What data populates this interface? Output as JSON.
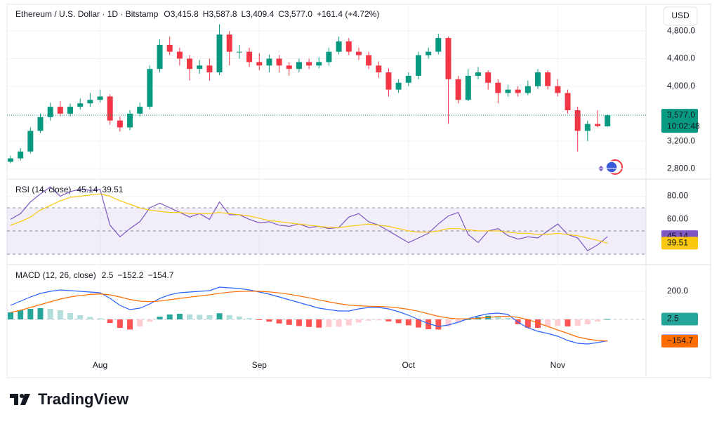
{
  "brand": "TradingView",
  "chart_data": [
    {
      "type": "candlestick",
      "title": "Ethereum / U.S. Dollar · 1D · Bitstamp",
      "legend": [
        {
          "key": "O",
          "value": "3,415.8"
        },
        {
          "key": "H",
          "value": "3,587.8"
        },
        {
          "key": "L",
          "value": "3,409.4"
        },
        {
          "key": "C",
          "value": "3,577.0"
        }
      ],
      "change": "+161.4 (+4.72%)",
      "currency": "USD",
      "up_color": "#089981",
      "down_color": "#f23645",
      "categories": [
        null,
        null,
        null,
        null,
        null,
        null,
        null,
        null,
        null,
        "Aug",
        null,
        null,
        null,
        null,
        null,
        null,
        null,
        null,
        null,
        null,
        null,
        null,
        null,
        null,
        null,
        "Sep",
        null,
        null,
        null,
        null,
        null,
        null,
        null,
        null,
        null,
        null,
        null,
        null,
        null,
        null,
        "Oct",
        null,
        null,
        null,
        null,
        null,
        null,
        null,
        null,
        null,
        null,
        null,
        null,
        null,
        null,
        "Nov",
        null,
        null,
        null,
        null,
        null
      ],
      "candles": [
        [
          2900,
          2990,
          2880,
          2950
        ],
        [
          2950,
          3100,
          2920,
          3050
        ],
        [
          3050,
          3400,
          3020,
          3350
        ],
        [
          3350,
          3600,
          3320,
          3550
        ],
        [
          3550,
          3760,
          3500,
          3700
        ],
        [
          3700,
          3780,
          3560,
          3600
        ],
        [
          3600,
          3750,
          3560,
          3700
        ],
        [
          3700,
          3820,
          3660,
          3750
        ],
        [
          3750,
          3900,
          3700,
          3800
        ],
        [
          3800,
          3950,
          3760,
          3850
        ],
        [
          3850,
          3880,
          3440,
          3500
        ],
        [
          3500,
          3560,
          3340,
          3400
        ],
        [
          3400,
          3650,
          3360,
          3600
        ],
        [
          3600,
          3760,
          3560,
          3700
        ],
        [
          3700,
          4300,
          3660,
          4250
        ],
        [
          4250,
          4680,
          4200,
          4600
        ],
        [
          4600,
          4720,
          4450,
          4500
        ],
        [
          4500,
          4560,
          4300,
          4400
        ],
        [
          4400,
          4450,
          4080,
          4250
        ],
        [
          4250,
          4380,
          4180,
          4300
        ],
        [
          4300,
          4400,
          4080,
          4200
        ],
        [
          4200,
          4900,
          4160,
          4750
        ],
        [
          4750,
          4800,
          4300,
          4500
        ],
        [
          4500,
          4600,
          4400,
          4500
        ],
        [
          4500,
          4560,
          4280,
          4350
        ],
        [
          4350,
          4480,
          4230,
          4300
        ],
        [
          4300,
          4460,
          4200,
          4400
        ],
        [
          4400,
          4450,
          4200,
          4300
        ],
        [
          4300,
          4350,
          4150,
          4250
        ],
        [
          4250,
          4400,
          4200,
          4350
        ],
        [
          4350,
          4400,
          4250,
          4300
        ],
        [
          4300,
          4420,
          4260,
          4350
        ],
        [
          4350,
          4560,
          4300,
          4500
        ],
        [
          4500,
          4720,
          4460,
          4650
        ],
        [
          4650,
          4700,
          4450,
          4500
        ],
        [
          4500,
          4560,
          4380,
          4450
        ],
        [
          4450,
          4500,
          4250,
          4300
        ],
        [
          4300,
          4360,
          4120,
          4200
        ],
        [
          4200,
          4260,
          3850,
          3950
        ],
        [
          3950,
          4100,
          3900,
          4050
        ],
        [
          4050,
          4200,
          4000,
          4150
        ],
        [
          4150,
          4500,
          4100,
          4450
        ],
        [
          4450,
          4560,
          4400,
          4500
        ],
        [
          4500,
          4760,
          4460,
          4700
        ],
        [
          4700,
          4720,
          3450,
          4100
        ],
        [
          4100,
          4150,
          3750,
          3800
        ],
        [
          3800,
          4250,
          3780,
          4150
        ],
        [
          4150,
          4280,
          4100,
          4200
        ],
        [
          4200,
          4230,
          3950,
          4050
        ],
        [
          4050,
          4100,
          3750,
          3900
        ],
        [
          3900,
          4020,
          3850,
          3950
        ],
        [
          3950,
          4000,
          3850,
          3900
        ],
        [
          3900,
          4080,
          3870,
          4000
        ],
        [
          4000,
          4250,
          3960,
          4200
        ],
        [
          4200,
          4230,
          3950,
          4000
        ],
        [
          4000,
          4100,
          3850,
          3900
        ],
        [
          3900,
          3950,
          3600,
          3650
        ],
        [
          3650,
          3700,
          3050,
          3350
        ],
        [
          3350,
          3500,
          3200,
          3450
        ],
        [
          3450,
          3650,
          3400,
          3420
        ],
        [
          3415.8,
          3587.8,
          3409.4,
          3577.0
        ]
      ],
      "last_label": "3,577.0",
      "countdown": "10:02:48",
      "ylim": [
        2650,
        5150
      ],
      "yticks": [
        {
          "value": 2800,
          "label": "2,800.0"
        },
        {
          "value": 3200,
          "label": "3,200.0"
        },
        {
          "value": 4000,
          "label": "4,000.0"
        },
        {
          "value": 4400,
          "label": "4,400.0"
        },
        {
          "value": 4800,
          "label": "4,800.0"
        }
      ]
    },
    {
      "type": "line",
      "title": "RSI (14, close)",
      "series": [
        {
          "color": "#7e57c2",
          "values": [
            60,
            65,
            75,
            82,
            88,
            80,
            84,
            86,
            85,
            86,
            55,
            45,
            52,
            58,
            70,
            74,
            70,
            66,
            62,
            65,
            60,
            75,
            64,
            64,
            60,
            57,
            58,
            55,
            54,
            56,
            53,
            54,
            52,
            53,
            62,
            65,
            58,
            55,
            50,
            45,
            40,
            44,
            48,
            56,
            63,
            66,
            47,
            40,
            50,
            52,
            46,
            43,
            45,
            44,
            50,
            56,
            47,
            44,
            33,
            38,
            45.14
          ]
        },
        {
          "color": "#f9c80e",
          "values": [
            55,
            58,
            62,
            68,
            72,
            76,
            79,
            80,
            81,
            82,
            80,
            76,
            73,
            70,
            68,
            67,
            66,
            66,
            65,
            65,
            65,
            66,
            65,
            64,
            63,
            61,
            59,
            58,
            57,
            56,
            55,
            54,
            53,
            53,
            54,
            55,
            56,
            55,
            54,
            52,
            50,
            49,
            49,
            50,
            52,
            52,
            51,
            50,
            50,
            50,
            49,
            48,
            48,
            47,
            47,
            48,
            47,
            46,
            44,
            42,
            39.51
          ]
        }
      ],
      "bands": [
        70,
        50,
        30
      ],
      "band_color": "#7e57c2",
      "ylim": [
        24,
        93
      ],
      "yticks": [
        {
          "value": 60,
          "label": "60.00"
        },
        {
          "value": 80,
          "label": "80.00"
        }
      ]
    },
    {
      "type": "line",
      "title": "MACD (12, 26, close)",
      "series": [
        {
          "type": "bar",
          "colors": [
            "#26a69a",
            "#b2dfdb",
            "#ff5252",
            "#ffcdd2"
          ],
          "values": [
            50,
            65,
            75,
            80,
            75,
            65,
            45,
            30,
            17,
            8,
            -25,
            -60,
            -72,
            -50,
            -16,
            19,
            35,
            40,
            36,
            33,
            30,
            44,
            31,
            21,
            9,
            -5,
            -16,
            -29,
            -39,
            -47,
            -54,
            -59,
            -55,
            -52,
            -42,
            -22,
            -9,
            -7,
            -14,
            -27,
            -42,
            -58,
            -70,
            -72,
            -50,
            -24,
            1,
            17,
            26,
            25,
            12,
            -34,
            -59,
            -60,
            -50,
            -45,
            -50,
            -45,
            -35,
            -15,
            2.5
          ]
        },
        {
          "color": "#2962ff",
          "last_label": "−152.2",
          "values": [
            100,
            130,
            160,
            185,
            200,
            210,
            205,
            200,
            195,
            190,
            150,
            100,
            70,
            80,
            110,
            150,
            175,
            190,
            195,
            200,
            205,
            230,
            225,
            220,
            210,
            195,
            180,
            160,
            140,
            120,
            100,
            80,
            70,
            60,
            60,
            75,
            85,
            85,
            75,
            55,
            30,
            0,
            -30,
            -50,
            -40,
            -20,
            5,
            25,
            40,
            45,
            35,
            -20,
            -60,
            -85,
            -100,
            -120,
            -150,
            -170,
            -175,
            -165,
            -152.2
          ]
        },
        {
          "color": "#ff6d00",
          "last_label": "−154.7",
          "values": [
            50,
            65,
            85,
            105,
            125,
            145,
            160,
            170,
            178,
            182,
            175,
            160,
            142,
            130,
            126,
            131,
            140,
            150,
            159,
            167,
            175,
            186,
            194,
            199,
            201,
            200,
            196,
            189,
            179,
            167,
            154,
            139,
            125,
            112,
            102,
            97,
            94,
            92,
            89,
            82,
            72,
            58,
            40,
            22,
            10,
            4,
            4,
            8,
            14,
            20,
            23,
            14,
            -1,
            -25,
            -50,
            -75,
            -100,
            -125,
            -140,
            -150,
            -154.7
          ]
        }
      ],
      "ylim": [
        -275,
        375
      ],
      "yticks": [
        {
          "value": 200,
          "label": "200.0"
        }
      ]
    }
  ]
}
